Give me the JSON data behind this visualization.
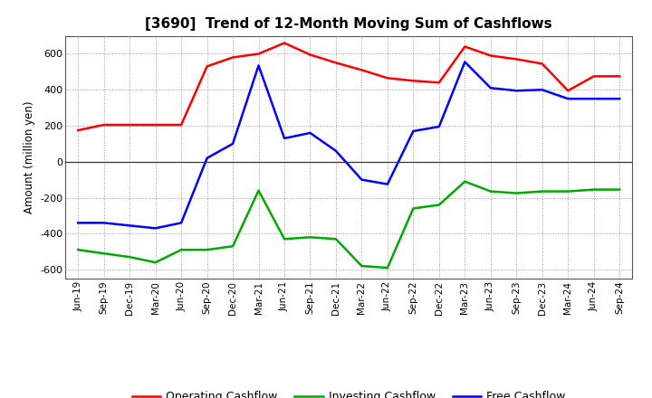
{
  "title": "[3690]  Trend of 12-Month Moving Sum of Cashflows",
  "ylabel": "Amount (million yen)",
  "x_labels": [
    "Jun-19",
    "Sep-19",
    "Dec-19",
    "Mar-20",
    "Jun-20",
    "Sep-20",
    "Dec-20",
    "Mar-21",
    "Jun-21",
    "Sep-21",
    "Dec-21",
    "Mar-22",
    "Jun-22",
    "Sep-22",
    "Dec-22",
    "Mar-23",
    "Jun-23",
    "Sep-23",
    "Dec-23",
    "Mar-24",
    "Jun-24",
    "Sep-24"
  ],
  "operating": [
    175,
    205,
    205,
    205,
    205,
    530,
    580,
    600,
    660,
    595,
    550,
    510,
    465,
    450,
    440,
    640,
    590,
    570,
    545,
    395,
    475,
    475
  ],
  "investing": [
    -490,
    -510,
    -530,
    -560,
    -490,
    -490,
    -470,
    -160,
    -430,
    -420,
    -430,
    -580,
    -590,
    -260,
    -240,
    -110,
    -165,
    -175,
    -165,
    -165,
    -155,
    -155
  ],
  "free": [
    -340,
    -340,
    -355,
    -370,
    -340,
    20,
    100,
    535,
    130,
    160,
    60,
    -100,
    -125,
    170,
    195,
    555,
    410,
    395,
    400,
    350,
    350,
    350
  ],
  "ylim": [
    -650,
    700
  ],
  "yticks": [
    -600,
    -400,
    -200,
    0,
    200,
    400,
    600
  ],
  "operating_color": "#ff0000",
  "investing_color": "#00aa00",
  "free_color": "#0000ff",
  "bg_color": "#ffffff",
  "plot_bg_color": "#ffffff",
  "grid_color": "#999999",
  "legend_labels": [
    "Operating Cashflow",
    "Investing Cashflow",
    "Free Cashflow"
  ]
}
